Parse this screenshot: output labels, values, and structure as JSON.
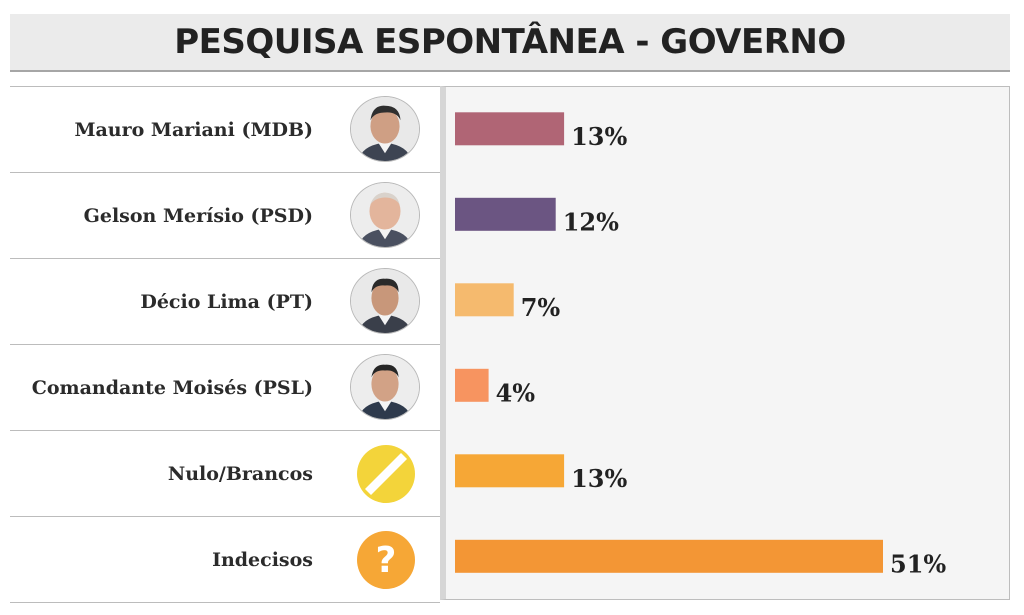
{
  "title": "PESQUISA ESPONTÂNEA - GOVERNO",
  "chart_data": {
    "type": "bar",
    "orientation": "horizontal",
    "categories": [
      "Mauro Mariani (MDB)",
      "Gelson Merísio (PSD)",
      "Décio Lima (PT)",
      "Comandante Moisés (PSL)",
      "Nulo/Brancos",
      "Indecisos"
    ],
    "values": [
      13,
      12,
      7,
      4,
      13,
      51
    ],
    "value_labels": [
      "13%",
      "12%",
      "7%",
      "4%",
      "13%",
      "51%"
    ],
    "colors": [
      "#b06575",
      "#6b5582",
      "#f5ba6e",
      "#f79460",
      "#f6a736",
      "#f39635"
    ],
    "unit": "%",
    "xlim": [
      0,
      51
    ],
    "grid": false,
    "legend": "none"
  },
  "icons": {
    "row_icons": [
      "candidate-photo-icon",
      "candidate-photo-icon",
      "candidate-photo-icon",
      "candidate-photo-icon",
      "null-vote-icon",
      "question-mark-icon"
    ],
    "question_mark": "?"
  }
}
